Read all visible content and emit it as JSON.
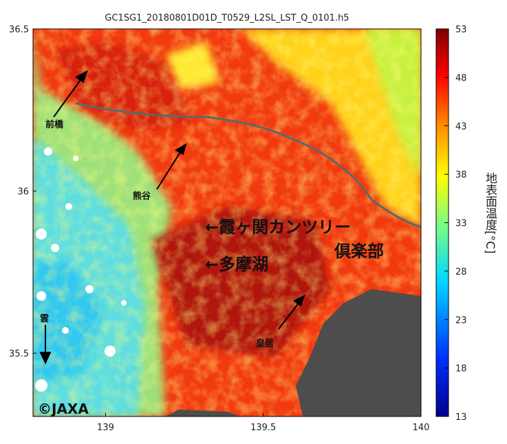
{
  "map": {
    "title": "GC1SG1_20180801D01D_T0529_L2SL_LST_Q_0101.h5",
    "xlim": [
      138.77,
      140
    ],
    "xticks": [
      139,
      139.5,
      140
    ],
    "ylim": [
      35.305,
      36.5
    ],
    "yticks": [
      35.5,
      36,
      36.5
    ],
    "colorbar": {
      "label": "地表面温度[°C]",
      "clim": [
        13,
        53
      ],
      "ticks": [
        13,
        18,
        23,
        28,
        33,
        38,
        43,
        48,
        53
      ]
    },
    "annotations": {
      "maebashi": "前橋",
      "kumagaya": "熊谷",
      "cloud": "雲",
      "palace": "皇居",
      "kasumigaseki": "←霞ヶ関カンツリー",
      "kasumigaseki_2": "倶楽部",
      "tamako": "←多摩湖"
    },
    "credit": "©JAXA"
  }
}
